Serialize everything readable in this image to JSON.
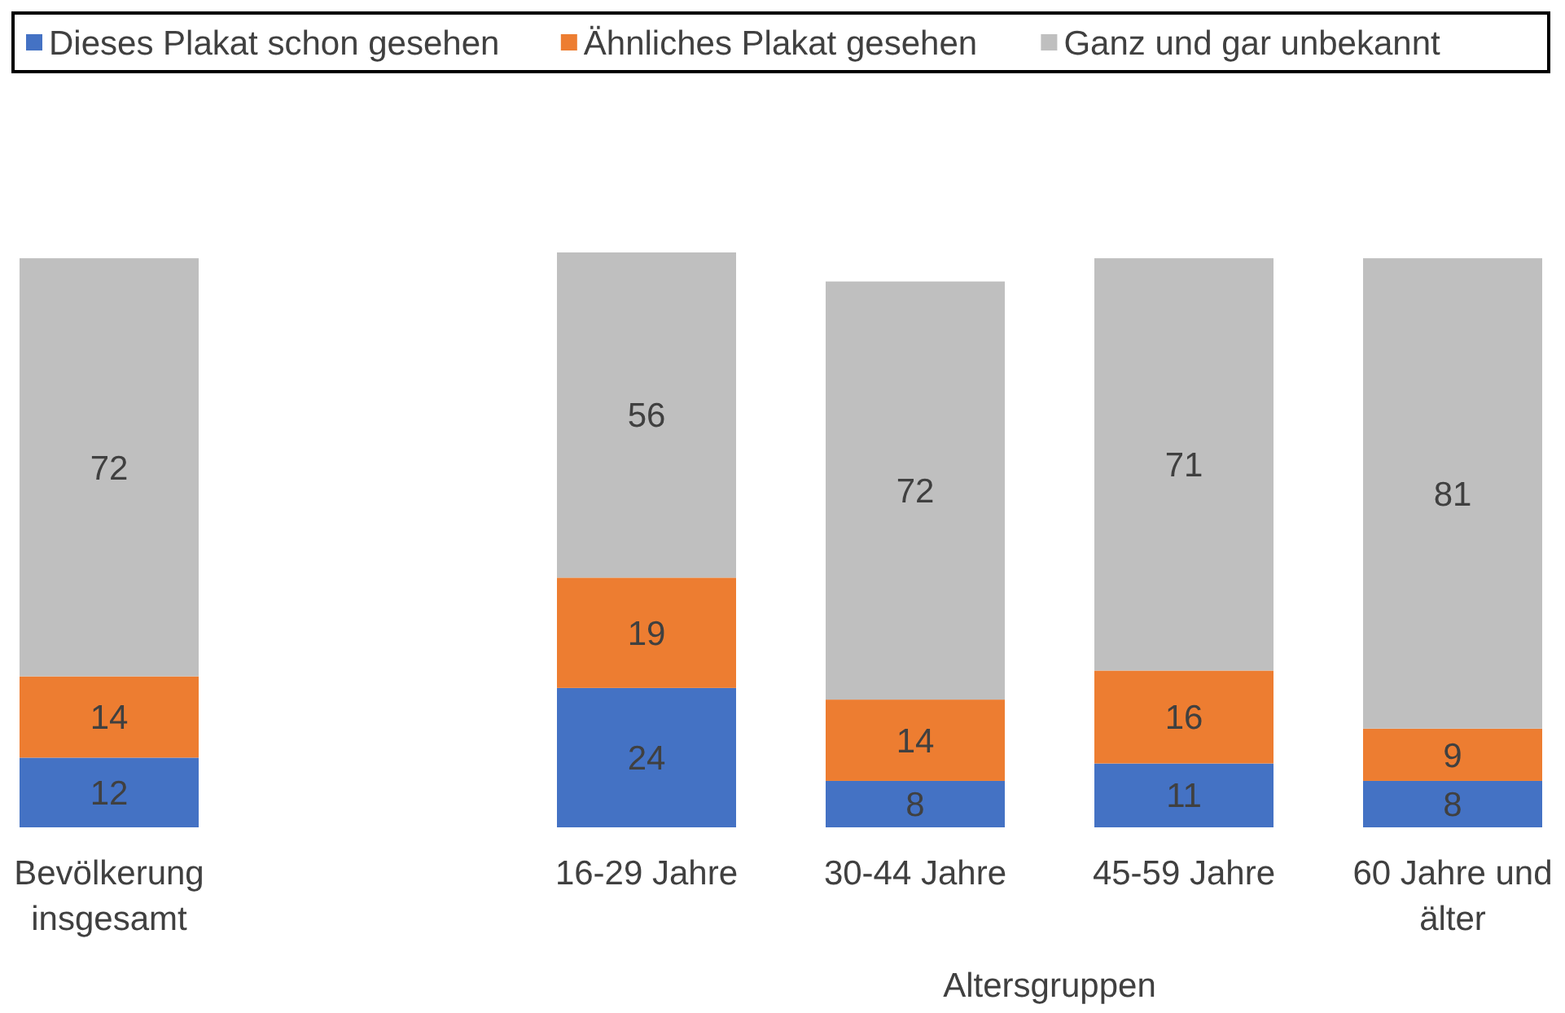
{
  "chart_data": {
    "type": "bar",
    "stacked": true,
    "data_labels": true,
    "legend": "top",
    "xlabel": "Altersgruppen",
    "categories": [
      "Bevölkerung insgesamt",
      null,
      "16-29 Jahre",
      "30-44 Jahre",
      "45-59 Jahre",
      "60 Jahre und älter"
    ],
    "series": [
      {
        "name": "Dieses Plakat schon gesehen",
        "color": "#4472c4",
        "values": [
          12,
          null,
          24,
          8,
          11,
          8
        ]
      },
      {
        "name": "Ähnliches Plakat gesehen",
        "color": "#ed7d31",
        "values": [
          14,
          null,
          19,
          14,
          16,
          9
        ]
      },
      {
        "name": "Ganz und gar unbekannt",
        "color": "#bfbfbf",
        "values": [
          72,
          null,
          56,
          72,
          71,
          81
        ]
      }
    ]
  }
}
